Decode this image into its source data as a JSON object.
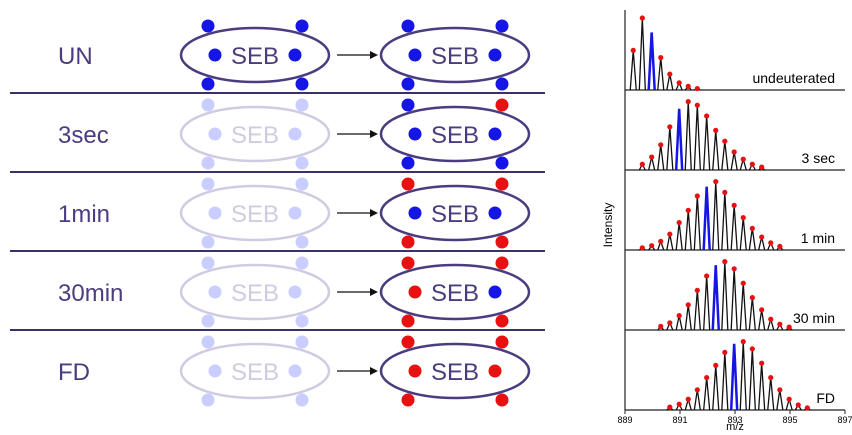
{
  "protein": "SEB",
  "rows": [
    {
      "label": "UN",
      "left_faded": false,
      "dots": [
        "#1515e6",
        "#1515e6",
        "#1515e6",
        "#1515e6",
        "#1515e6",
        "#1515e6"
      ]
    },
    {
      "label": "3sec",
      "left_faded": true,
      "dots": [
        "#1515e6",
        "#e81010",
        "#1515e6",
        "#1515e6",
        "#1515e6",
        "#1515e6"
      ]
    },
    {
      "label": "1min",
      "left_faded": true,
      "dots": [
        "#e81010",
        "#e81010",
        "#e81010",
        "#e81010",
        "#1515e6",
        "#1515e6"
      ]
    },
    {
      "label": "30min",
      "left_faded": true,
      "dots": [
        "#e81010",
        "#e81010",
        "#e81010",
        "#e81010",
        "#e81010",
        "#1515e6"
      ]
    },
    {
      "label": "FD",
      "left_faded": true,
      "dots": [
        "#e81010",
        "#e81010",
        "#e81010",
        "#e81010",
        "#e81010",
        "#e81010"
      ]
    }
  ],
  "spectra": {
    "y_label": "Intensity",
    "x_label": "m/z",
    "xlim": [
      889,
      897
    ],
    "xticks": [
      889,
      891,
      893,
      895,
      897
    ],
    "mz": [
      889.3,
      889.63,
      889.97,
      890.3,
      890.63,
      890.97,
      891.3,
      891.63,
      891.97,
      892.3,
      892.63,
      892.97,
      893.3,
      893.63,
      893.97,
      894.3,
      894.63,
      894.97,
      895.3,
      895.63
    ],
    "panels": [
      {
        "label": "undeuterated",
        "blue": 2,
        "intensity": [
          55,
          100,
          80,
          45,
          22,
          10,
          5,
          2,
          null,
          null,
          null,
          null,
          null,
          null,
          null,
          null,
          null,
          null,
          null,
          null
        ]
      },
      {
        "label": "3 sec",
        "blue": 5,
        "intensity": [
          null,
          8,
          18,
          35,
          60,
          85,
          95,
          90,
          75,
          55,
          40,
          25,
          15,
          8,
          4,
          null,
          null,
          null,
          null,
          null
        ]
      },
      {
        "label": "1 min",
        "blue": 8,
        "intensity": [
          null,
          3,
          6,
          12,
          22,
          38,
          55,
          75,
          88,
          95,
          80,
          62,
          45,
          30,
          18,
          10,
          5,
          null,
          null,
          null
        ]
      },
      {
        "label": "30 min",
        "blue": 9,
        "intensity": [
          null,
          null,
          null,
          5,
          10,
          20,
          35,
          55,
          75,
          90,
          95,
          85,
          65,
          45,
          28,
          15,
          8,
          4,
          null,
          null
        ]
      },
      {
        "label": "FD",
        "blue": 11,
        "intensity": [
          null,
          null,
          null,
          null,
          4,
          8,
          15,
          28,
          45,
          62,
          80,
          92,
          95,
          85,
          65,
          45,
          28,
          15,
          7,
          3
        ]
      }
    ]
  }
}
